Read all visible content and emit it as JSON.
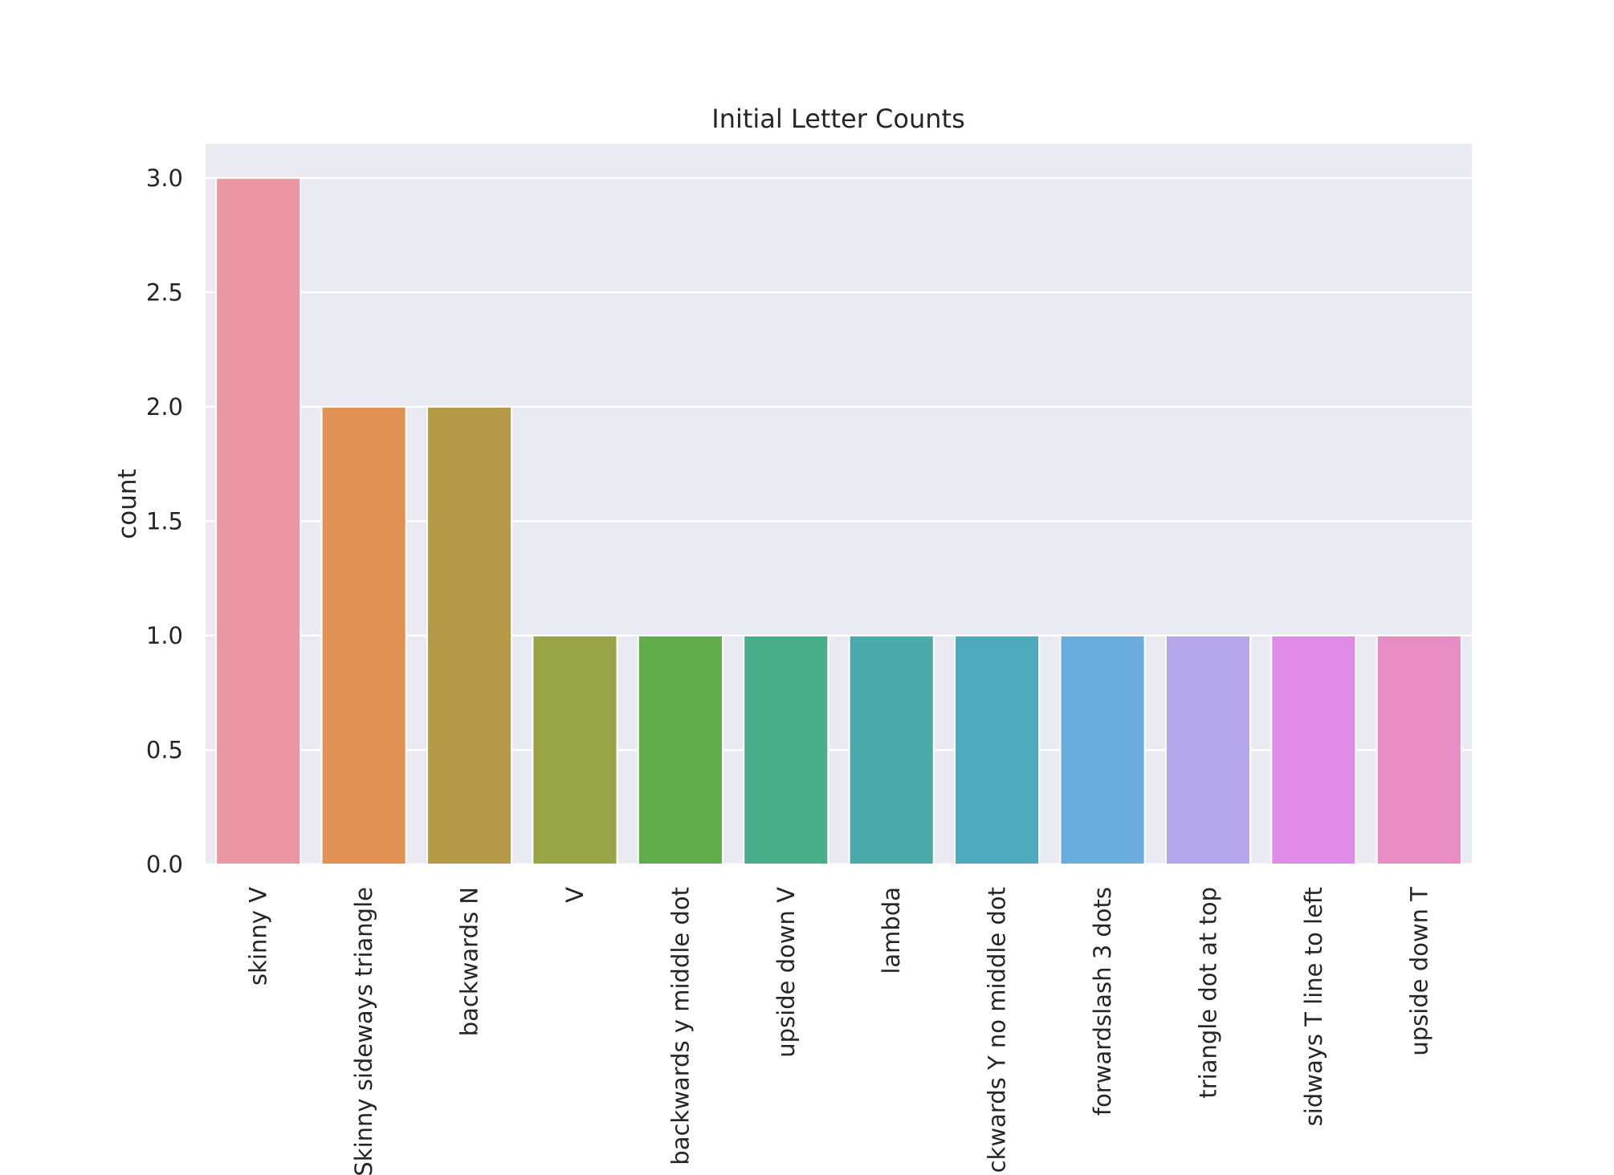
{
  "chart_data": {
    "type": "bar",
    "title": "Initial Letter Counts",
    "xlabel": "",
    "ylabel": "count",
    "ylim": [
      0,
      3.15
    ],
    "yticks": [
      0.0,
      0.5,
      1.0,
      1.5,
      2.0,
      2.5,
      3.0
    ],
    "ytick_labels": [
      "0.0",
      "0.5",
      "1.0",
      "1.5",
      "2.0",
      "2.5",
      "3.0"
    ],
    "grid": true,
    "background_color": "#eaeaf2",
    "categories": [
      "skinny V",
      "Skinny sideways triangle",
      "backwards N",
      "V",
      "backwards y middle dot",
      "upside down V",
      "lambda",
      "backwards Y no middle dot",
      "forwardslash 3 dots",
      "triangle dot at top",
      "sidways T line to left",
      "upside down T"
    ],
    "values": [
      3,
      2,
      2,
      1,
      1,
      1,
      1,
      1,
      1,
      1,
      1,
      1
    ],
    "colors": [
      "#ea96a3",
      "#e19153",
      "#b59b49",
      "#99a446",
      "#62ad4b",
      "#4aad89",
      "#4babaa",
      "#4fa9bc",
      "#6bacdf",
      "#b6a6eb",
      "#e08ce6",
      "#e78dc3"
    ]
  }
}
